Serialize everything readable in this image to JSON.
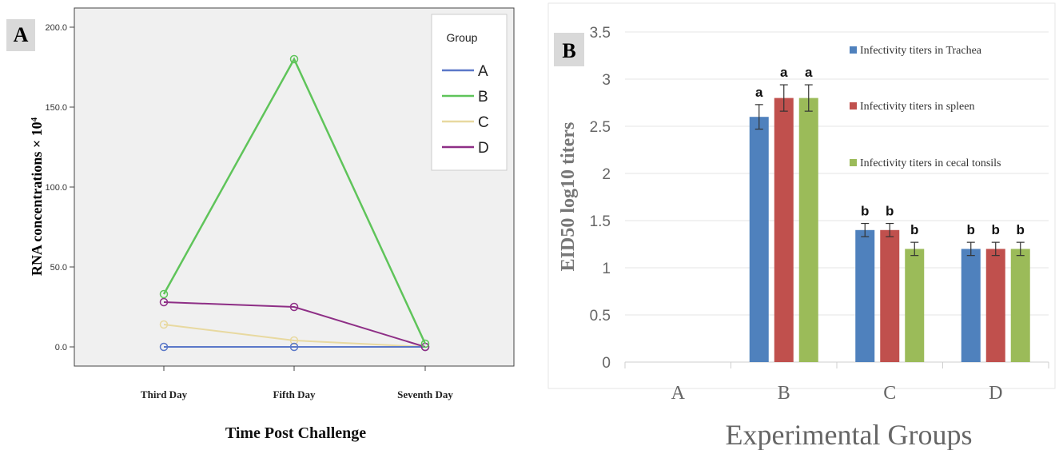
{
  "chart_data": [
    {
      "type": "line",
      "panel_label": "A",
      "title": "",
      "xlabel": "Time Post Challenge",
      "ylabel": "RNA concentrations × 10",
      "ylabel_sup": "4",
      "categories": [
        "Third Day",
        "Fifth Day",
        "Seventh Day"
      ],
      "y_ticks": [
        "0.0",
        "50.0",
        "100.0",
        "150.0",
        "200.0"
      ],
      "ylim": [
        0,
        200
      ],
      "grid": false,
      "legend_title": "Group",
      "legend_position": "top-right",
      "series": [
        {
          "name": "A",
          "color": "#5b78c8",
          "values": [
            0,
            0,
            0
          ]
        },
        {
          "name": "B",
          "color": "#5fc45a",
          "values": [
            33,
            180,
            2
          ]
        },
        {
          "name": "C",
          "color": "#e8d9a0",
          "values": [
            14,
            4,
            0
          ]
        },
        {
          "name": "D",
          "color": "#8e2f86",
          "values": [
            28,
            25,
            0
          ]
        }
      ]
    },
    {
      "type": "bar",
      "panel_label": "B",
      "title": "",
      "xlabel": "Experimental Groups",
      "ylabel": "EID50 log10 titers",
      "categories": [
        "A",
        "B",
        "C",
        "D"
      ],
      "y_ticks": [
        "0",
        "0.5",
        "1",
        "1.5",
        "2",
        "2.5",
        "3",
        "3.5"
      ],
      "ylim": [
        0,
        3.5
      ],
      "grid": true,
      "legend_position": "top-right",
      "series": [
        {
          "name": "Infectivity titers in Trachea",
          "color": "#4f81bd",
          "values": [
            0,
            2.6,
            1.4,
            1.2
          ],
          "errors": [
            0,
            0.13,
            0.07,
            0.07
          ],
          "labels": [
            "",
            "a",
            "b",
            "b"
          ]
        },
        {
          "name": "Infectivity titers in spleen",
          "color": "#c0504d",
          "values": [
            0,
            2.8,
            1.4,
            1.2
          ],
          "errors": [
            0,
            0.14,
            0.07,
            0.07
          ],
          "labels": [
            "",
            "a",
            "b",
            "b"
          ]
        },
        {
          "name": "Infectivity titers in cecal tonsils",
          "color": "#9bbb59",
          "values": [
            0,
            2.8,
            1.2,
            1.2
          ],
          "errors": [
            0,
            0.14,
            0.07,
            0.07
          ],
          "labels": [
            "",
            "a",
            "b",
            "b"
          ]
        }
      ]
    }
  ]
}
